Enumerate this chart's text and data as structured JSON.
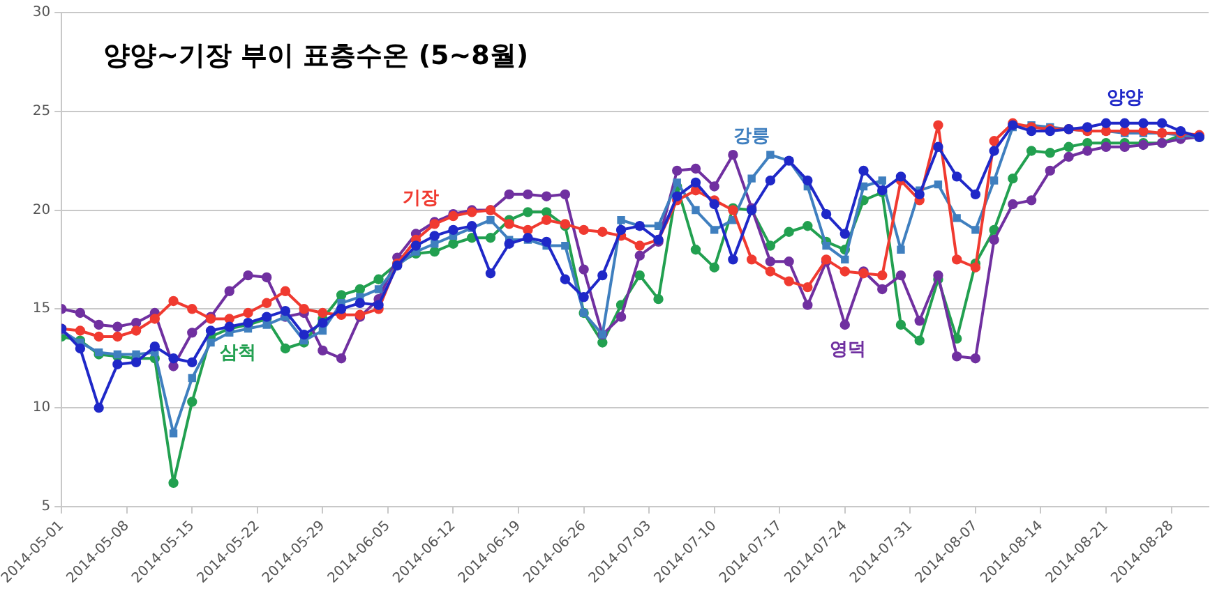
{
  "chart_data": {
    "type": "line",
    "title": "양양~기장 부이 표층수온 (5~8월)",
    "x": [
      "2014-05-01",
      "2014-05-03",
      "2014-05-05",
      "2014-05-07",
      "2014-05-09",
      "2014-05-11",
      "2014-05-13",
      "2014-05-15",
      "2014-05-17",
      "2014-05-19",
      "2014-05-21",
      "2014-05-23",
      "2014-05-25",
      "2014-05-27",
      "2014-05-29",
      "2014-05-31",
      "2014-06-02",
      "2014-06-04",
      "2014-06-06",
      "2014-06-08",
      "2014-06-10",
      "2014-06-12",
      "2014-06-14",
      "2014-06-16",
      "2014-06-18",
      "2014-06-20",
      "2014-06-22",
      "2014-06-24",
      "2014-06-26",
      "2014-06-28",
      "2014-06-30",
      "2014-07-02",
      "2014-07-04",
      "2014-07-06",
      "2014-07-08",
      "2014-07-10",
      "2014-07-12",
      "2014-07-14",
      "2014-07-16",
      "2014-07-18",
      "2014-07-20",
      "2014-07-22",
      "2014-07-24",
      "2014-07-26",
      "2014-07-28",
      "2014-07-30",
      "2014-08-01",
      "2014-08-03",
      "2014-08-05",
      "2014-08-07",
      "2014-08-09",
      "2014-08-11",
      "2014-08-13",
      "2014-08-15",
      "2014-08-17",
      "2014-08-19",
      "2014-08-21",
      "2014-08-23",
      "2014-08-25",
      "2014-08-27",
      "2014-08-29",
      "2014-08-31"
    ],
    "series": [
      {
        "name": "양양",
        "color": "#1f28c8",
        "marker": "circle",
        "values": [
          14.0,
          13.0,
          10.0,
          12.2,
          12.3,
          13.1,
          12.5,
          12.3,
          13.9,
          14.1,
          14.3,
          14.6,
          14.9,
          13.7,
          14.3,
          15.0,
          15.3,
          15.2,
          17.2,
          18.2,
          18.7,
          19.0,
          19.2,
          16.8,
          18.3,
          18.6,
          18.4,
          16.5,
          15.6,
          16.7,
          19.0,
          19.2,
          18.5,
          20.7,
          21.4,
          20.3,
          17.5,
          20.0,
          21.5,
          22.5,
          21.5,
          19.8,
          18.8,
          22.0,
          21.0,
          21.7,
          20.8,
          23.2,
          21.7,
          20.8,
          23.0,
          24.3,
          24.0,
          24.0,
          24.1,
          24.2,
          24.4,
          24.4,
          24.4,
          24.4,
          24.0,
          23.7
        ]
      },
      {
        "name": "기장",
        "color": "#f03a30",
        "marker": "circle",
        "values": [
          14.0,
          13.9,
          13.6,
          13.6,
          13.9,
          14.5,
          15.4,
          15.0,
          14.5,
          14.5,
          14.8,
          15.3,
          15.9,
          15.0,
          14.8,
          14.7,
          14.7,
          15.0,
          17.3,
          18.5,
          19.3,
          19.7,
          19.9,
          20.0,
          19.3,
          19.0,
          19.5,
          19.3,
          19.0,
          18.9,
          18.7,
          18.2,
          18.5,
          20.5,
          21.0,
          20.5,
          20.0,
          17.5,
          16.9,
          16.4,
          16.1,
          17.5,
          16.9,
          16.8,
          16.7,
          21.5,
          20.5,
          24.3,
          17.5,
          17.1,
          23.5,
          24.4,
          24.2,
          24.1,
          24.1,
          24.0,
          24.0,
          24.0,
          24.0,
          23.9,
          23.9,
          23.8
        ]
      },
      {
        "name": "강릉",
        "color": "#3f7fbf",
        "marker": "square",
        "values": [
          13.9,
          13.3,
          12.8,
          12.7,
          12.7,
          12.8,
          8.7,
          11.5,
          13.3,
          13.8,
          14.0,
          14.2,
          14.6,
          13.4,
          13.9,
          15.3,
          15.6,
          16.0,
          17.2,
          17.9,
          18.3,
          18.7,
          19.1,
          19.5,
          18.5,
          18.5,
          18.2,
          18.2,
          14.8,
          13.7,
          19.5,
          19.2,
          19.2,
          21.4,
          20.0,
          19.0,
          19.5,
          21.6,
          22.8,
          22.5,
          21.2,
          18.2,
          17.5,
          21.2,
          21.5,
          18.0,
          21.0,
          21.3,
          19.6,
          19.0,
          21.5,
          24.2,
          24.3,
          24.2,
          24.1,
          24.0,
          24.0,
          23.9,
          23.9,
          23.9,
          23.8,
          23.7
        ]
      },
      {
        "name": "영덕",
        "color": "#7030a0",
        "marker": "circle",
        "values": [
          15.0,
          14.8,
          14.2,
          14.1,
          14.3,
          14.8,
          12.1,
          13.8,
          14.6,
          15.9,
          16.7,
          16.6,
          14.6,
          14.8,
          12.9,
          12.5,
          14.6,
          15.5,
          17.6,
          18.8,
          19.4,
          19.8,
          20.0,
          20.0,
          20.8,
          20.8,
          20.7,
          20.8,
          17.0,
          13.7,
          14.6,
          17.7,
          18.4,
          22.0,
          22.1,
          21.2,
          22.8,
          20.1,
          17.4,
          17.4,
          15.2,
          17.4,
          14.2,
          16.9,
          16.0,
          16.7,
          14.4,
          16.7,
          12.6,
          12.5,
          18.5,
          20.3,
          20.5,
          22.0,
          22.7,
          23.0,
          23.2,
          23.2,
          23.3,
          23.4,
          23.6,
          23.7
        ]
      },
      {
        "name": "삼척",
        "color": "#22a050",
        "marker": "circle",
        "values": [
          13.6,
          13.4,
          12.7,
          12.6,
          12.5,
          12.5,
          6.2,
          10.3,
          13.6,
          14.0,
          14.2,
          14.5,
          13.0,
          13.3,
          14.5,
          15.7,
          16.0,
          16.5,
          17.3,
          17.8,
          17.9,
          18.3,
          18.6,
          18.6,
          19.5,
          19.9,
          19.9,
          19.2,
          14.8,
          13.3,
          15.2,
          16.7,
          15.5,
          21.2,
          18.0,
          17.1,
          20.1,
          20.0,
          18.2,
          18.9,
          19.2,
          18.4,
          18.0,
          20.5,
          20.9,
          14.2,
          13.4,
          16.5,
          13.5,
          17.3,
          19.0,
          21.6,
          23.0,
          22.9,
          23.2,
          23.4,
          23.4,
          23.4,
          23.4,
          23.4,
          23.8,
          23.7
        ]
      }
    ],
    "xlim": [
      "2014-05-01",
      "2014-09-01"
    ],
    "xticks": [
      "2014-05-01",
      "2014-05-08",
      "2014-05-15",
      "2014-05-22",
      "2014-05-29",
      "2014-06-05",
      "2014-06-12",
      "2014-06-19",
      "2014-06-26",
      "2014-07-03",
      "2014-07-10",
      "2014-07-17",
      "2014-07-24",
      "2014-07-31",
      "2014-08-07",
      "2014-08-14",
      "2014-08-21",
      "2014-08-28"
    ],
    "ylim": [
      5,
      30
    ],
    "yticks": [
      5,
      10,
      15,
      20,
      25,
      30
    ],
    "grid": "y"
  }
}
